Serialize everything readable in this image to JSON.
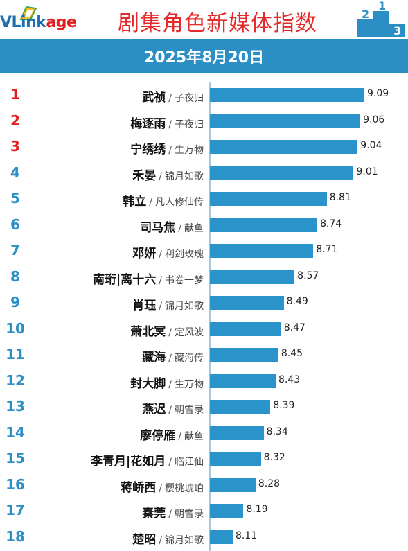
{
  "brand": {
    "logo_text_main": "VLink",
    "logo_text_accent": "age"
  },
  "header": {
    "title": "剧集角色新媒体指数",
    "date": "2025年8月20日"
  },
  "colors": {
    "title": "#e32b2b",
    "band": "#2b8fc6",
    "bar": "#2a93c9",
    "rank_top3": "#e02020",
    "rank_rest": "#2b8fc6"
  },
  "chart_data": {
    "type": "bar",
    "orientation": "horizontal",
    "title": "剧集角色新媒体指数",
    "subtitle": "2025年8月20日",
    "categories": [
      "武祯 / 子夜归",
      "梅逐雨 / 子夜归",
      "宁绣绣 / 生万物",
      "禾晏 / 锦月如歌",
      "韩立 / 凡人修仙传",
      "司马焦 / 献鱼",
      "邓妍 / 利剑玫瑰",
      "南珩|离十六 / 书卷一梦",
      "肖珏 / 锦月如歌",
      "萧北冥 / 定风波",
      "藏海 / 藏海传",
      "封大脚 / 生万物",
      "燕迟 / 朝雪录",
      "廖停雁 / 献鱼",
      "李青月|花如月 / 临江仙",
      "蒋峤西 / 樱桃琥珀",
      "秦莞 / 朝雪录",
      "楚昭 / 锦月如歌"
    ],
    "rows": [
      {
        "rank": "1",
        "name": "武祯",
        "drama": "子夜归",
        "value": 9.09,
        "value_label": "9.09"
      },
      {
        "rank": "2",
        "name": "梅逐雨",
        "drama": "子夜归",
        "value": 9.06,
        "value_label": "9.06"
      },
      {
        "rank": "3",
        "name": "宁绣绣",
        "drama": "生万物",
        "value": 9.04,
        "value_label": "9.04"
      },
      {
        "rank": "4",
        "name": "禾晏",
        "drama": "锦月如歌",
        "value": 9.01,
        "value_label": "9.01"
      },
      {
        "rank": "5",
        "name": "韩立",
        "drama": "凡人修仙传",
        "value": 8.81,
        "value_label": "8.81"
      },
      {
        "rank": "6",
        "name": "司马焦",
        "drama": "献鱼",
        "value": 8.74,
        "value_label": "8.74"
      },
      {
        "rank": "7",
        "name": "邓妍",
        "drama": "利剑玫瑰",
        "value": 8.71,
        "value_label": "8.71"
      },
      {
        "rank": "8",
        "name": "南珩|离十六",
        "drama": "书卷一梦",
        "value": 8.57,
        "value_label": "8.57"
      },
      {
        "rank": "9",
        "name": "肖珏",
        "drama": "锦月如歌",
        "value": 8.49,
        "value_label": "8.49"
      },
      {
        "rank": "10",
        "name": "萧北冥",
        "drama": "定风波",
        "value": 8.47,
        "value_label": "8.47"
      },
      {
        "rank": "11",
        "name": "藏海",
        "drama": "藏海传",
        "value": 8.45,
        "value_label": "8.45"
      },
      {
        "rank": "12",
        "name": "封大脚",
        "drama": "生万物",
        "value": 8.43,
        "value_label": "8.43"
      },
      {
        "rank": "13",
        "name": "燕迟",
        "drama": "朝雪录",
        "value": 8.39,
        "value_label": "8.39"
      },
      {
        "rank": "14",
        "name": "廖停雁",
        "drama": "献鱼",
        "value": 8.34,
        "value_label": "8.34"
      },
      {
        "rank": "15",
        "name": "李青月|花如月",
        "drama": "临江仙",
        "value": 8.32,
        "value_label": "8.32"
      },
      {
        "rank": "16",
        "name": "蒋峤西",
        "drama": "樱桃琥珀",
        "value": 8.28,
        "value_label": "8.28"
      },
      {
        "rank": "17",
        "name": "秦莞",
        "drama": "朝雪录",
        "value": 8.19,
        "value_label": "8.19"
      },
      {
        "rank": "18",
        "name": "楚昭",
        "drama": "锦月如歌",
        "value": 8.11,
        "value_label": "8.11"
      }
    ],
    "values": [
      9.09,
      9.06,
      9.04,
      9.01,
      8.81,
      8.74,
      8.71,
      8.57,
      8.49,
      8.47,
      8.45,
      8.43,
      8.39,
      8.34,
      8.32,
      8.28,
      8.19,
      8.11
    ],
    "xlim": [
      7.94,
      9.09
    ],
    "grid": false,
    "legend": "none"
  }
}
